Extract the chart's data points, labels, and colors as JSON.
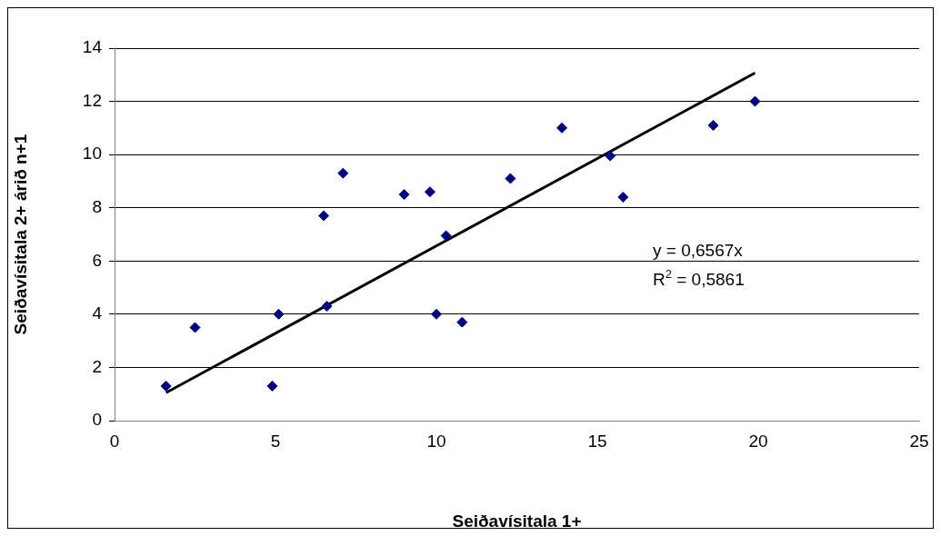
{
  "chart_data": {
    "type": "scatter",
    "xlabel": "Seiðavísitala 1+",
    "ylabel": "Seiðavísitala 2+ árið n+1",
    "series": [
      {
        "color": "#000080",
        "marker": "diamond",
        "x": [
          1.6,
          2.5,
          4.9,
          5.1,
          6.5,
          6.6,
          7.1,
          9.0,
          9.8,
          10.0,
          10.3,
          10.8,
          12.3,
          13.9,
          15.4,
          15.8,
          18.6,
          19.9
        ],
        "values": [
          1.3,
          3.5,
          1.3,
          4.0,
          7.7,
          4.3,
          9.3,
          8.5,
          8.6,
          4.0,
          6.95,
          3.7,
          9.1,
          11.0,
          9.95,
          8.4,
          11.1,
          12.0
        ]
      },
      {
        "type": "line",
        "color": "#000000",
        "marker": "none",
        "x": [
          1.6,
          19.9
        ],
        "values": [
          1.05,
          13.07
        ]
      }
    ],
    "annotations": [
      "y = 0,6567x",
      "R$^{2}$ = 0,5861"
    ],
    "xlim": [
      0,
      25
    ],
    "xticks": [
      0,
      5,
      10,
      15,
      20,
      25
    ],
    "ylim": [
      0,
      14
    ],
    "yticks": [
      0,
      2,
      4,
      6,
      8,
      10,
      12,
      14
    ],
    "grid": "y",
    "legend": false
  }
}
